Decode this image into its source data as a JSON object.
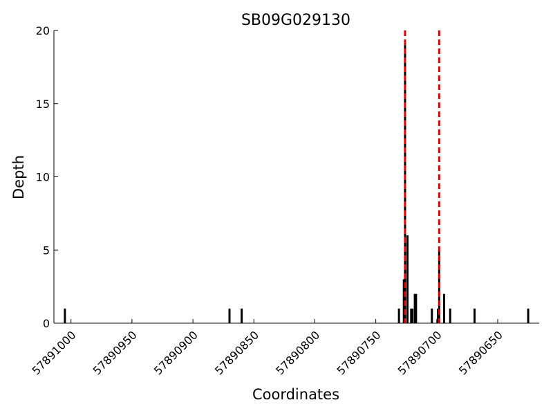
{
  "chart_data": {
    "type": "bar",
    "title": "SB09G029130",
    "x_label": "Coordinates",
    "y_label": "Depth",
    "x": [
      57891005,
      57890870,
      57890860,
      57890731,
      57890727,
      57890726,
      57890724,
      57890721,
      57890720,
      57890718,
      57890717,
      57890704,
      57890699,
      57890698,
      57890694,
      57890689,
      57890669,
      57890625
    ],
    "values": [
      1,
      1,
      1,
      1,
      3,
      19,
      6,
      1,
      1,
      2,
      2,
      1,
      1,
      5,
      2,
      1,
      1,
      1
    ],
    "color": "#000000",
    "xlim": [
      57891014,
      57890616
    ],
    "xticks": [
      57891000,
      57890950,
      57890900,
      57890850,
      57890800,
      57890750,
      57890700,
      57890650
    ],
    "ylim": [
      0,
      20
    ],
    "yticks": [
      0,
      5,
      10,
      15,
      20
    ],
    "vlines": [
      57890726,
      57890698
    ],
    "vline_color": "#e00000"
  }
}
